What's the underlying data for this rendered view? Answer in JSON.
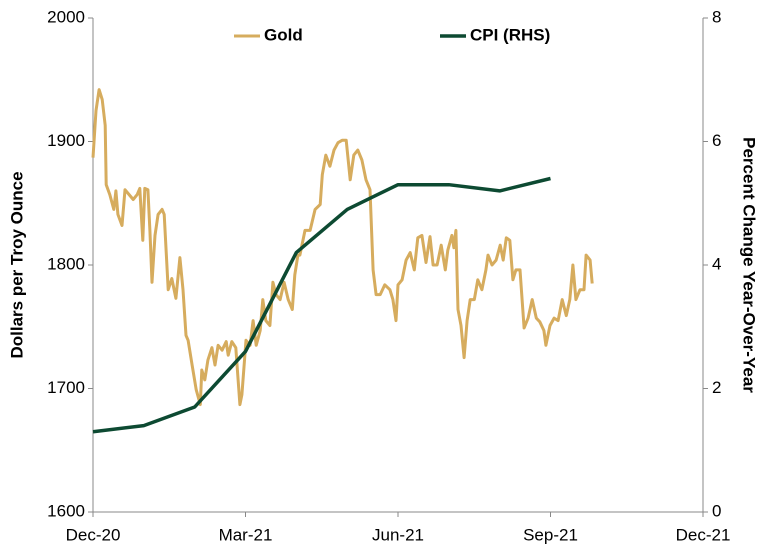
{
  "chart_data": {
    "type": "line",
    "ylabel": "Dollars per Troy Ounce",
    "y2label": "Percent Change Year-Over-Year",
    "xlim": [
      0,
      12
    ],
    "xticks": [
      {
        "value": 0,
        "label": "Dec-20"
      },
      {
        "value": 3,
        "label": "Mar-21"
      },
      {
        "value": 6,
        "label": "Jun-21"
      },
      {
        "value": 9,
        "label": "Sep-21"
      },
      {
        "value": 12,
        "label": "Dec-21"
      }
    ],
    "ylim": [
      1600,
      2000
    ],
    "yticks": [
      1600,
      1700,
      1800,
      1900,
      2000
    ],
    "y2lim": [
      0,
      8
    ],
    "y2ticks": [
      0,
      2,
      4,
      6,
      8
    ],
    "legend": "top",
    "series": [
      {
        "name": "Gold",
        "color": "#d6ac5e",
        "axis": "y",
        "x": [
          0,
          0.06,
          0.12,
          0.18,
          0.24,
          0.26,
          0.33,
          0.41,
          0.45,
          0.49,
          0.57,
          0.63,
          0.71,
          0.79,
          0.87,
          0.92,
          0.98,
          1.02,
          1.08,
          1.12,
          1.16,
          1.22,
          1.28,
          1.36,
          1.4,
          1.48,
          1.55,
          1.63,
          1.71,
          1.77,
          1.83,
          1.87,
          1.95,
          2.03,
          2.11,
          2.14,
          2.2,
          2.26,
          2.34,
          2.4,
          2.46,
          2.54,
          2.62,
          2.66,
          2.73,
          2.81,
          2.89,
          2.93,
          3.01,
          3.09,
          3.15,
          3.21,
          3.29,
          3.34,
          3.4,
          3.48,
          3.54,
          3.6,
          3.68,
          3.76,
          3.84,
          3.92,
          3.97,
          4.03,
          4.07,
          4.17,
          4.27,
          4.37,
          4.47,
          4.51,
          4.58,
          4.66,
          4.74,
          4.82,
          4.9,
          4.98,
          5.06,
          5.13,
          5.21,
          5.29,
          5.37,
          5.45,
          5.51,
          5.57,
          5.65,
          5.74,
          5.84,
          5.9,
          5.96,
          6.0,
          6.08,
          6.16,
          6.24,
          6.32,
          6.39,
          6.47,
          6.55,
          6.63,
          6.69,
          6.77,
          6.85,
          6.93,
          6.98,
          7.06,
          7.1,
          7.14,
          7.18,
          7.24,
          7.3,
          7.36,
          7.42,
          7.5,
          7.57,
          7.65,
          7.73,
          7.77,
          7.85,
          7.93,
          8.01,
          8.07,
          8.13,
          8.2,
          8.26,
          8.32,
          8.4,
          8.48,
          8.56,
          8.64,
          8.72,
          8.79,
          8.87,
          8.91,
          8.99,
          9.07,
          9.15,
          9.23,
          9.31,
          9.38,
          9.44,
          9.5,
          9.58,
          9.66,
          9.7,
          9.78,
          9.82
        ],
        "values": [
          1887,
          1925,
          1942,
          1934,
          1913,
          1865,
          1857,
          1845,
          1860,
          1841,
          1832,
          1861,
          1857,
          1853,
          1857,
          1862,
          1820,
          1862,
          1861,
          1828,
          1786,
          1824,
          1841,
          1845,
          1841,
          1780,
          1789,
          1773,
          1806,
          1780,
          1743,
          1739,
          1719,
          1699,
          1687,
          1715,
          1707,
          1723,
          1733,
          1719,
          1735,
          1731,
          1738,
          1727,
          1738,
          1733,
          1687,
          1695,
          1739,
          1735,
          1755,
          1735,
          1747,
          1772,
          1755,
          1751,
          1786,
          1776,
          1772,
          1786,
          1772,
          1764,
          1792,
          1808,
          1808,
          1828,
          1828,
          1845,
          1849,
          1873,
          1889,
          1880,
          1893,
          1899,
          1901,
          1901,
          1869,
          1889,
          1893,
          1885,
          1869,
          1861,
          1796,
          1776,
          1776,
          1784,
          1780,
          1772,
          1755,
          1784,
          1788,
          1804,
          1810,
          1796,
          1822,
          1824,
          1802,
          1823,
          1800,
          1800,
          1816,
          1796,
          1812,
          1824,
          1814,
          1828,
          1764,
          1751,
          1725,
          1755,
          1772,
          1772,
          1788,
          1780,
          1796,
          1808,
          1800,
          1804,
          1816,
          1804,
          1822,
          1820,
          1788,
          1796,
          1796,
          1749,
          1757,
          1772,
          1757,
          1754,
          1747,
          1735,
          1751,
          1757,
          1755,
          1772,
          1759,
          1772,
          1800,
          1772,
          1780,
          1780,
          1808,
          1804,
          1785
        ]
      },
      {
        "name": "CPI (RHS)",
        "color": "#0d4a32",
        "axis": "y2",
        "x": [
          0,
          1,
          2,
          3,
          4,
          5,
          6,
          7,
          8,
          9
        ],
        "values": [
          1.3,
          1.4,
          1.7,
          2.6,
          4.2,
          4.9,
          5.3,
          5.3,
          5.2,
          5.4
        ]
      }
    ]
  }
}
